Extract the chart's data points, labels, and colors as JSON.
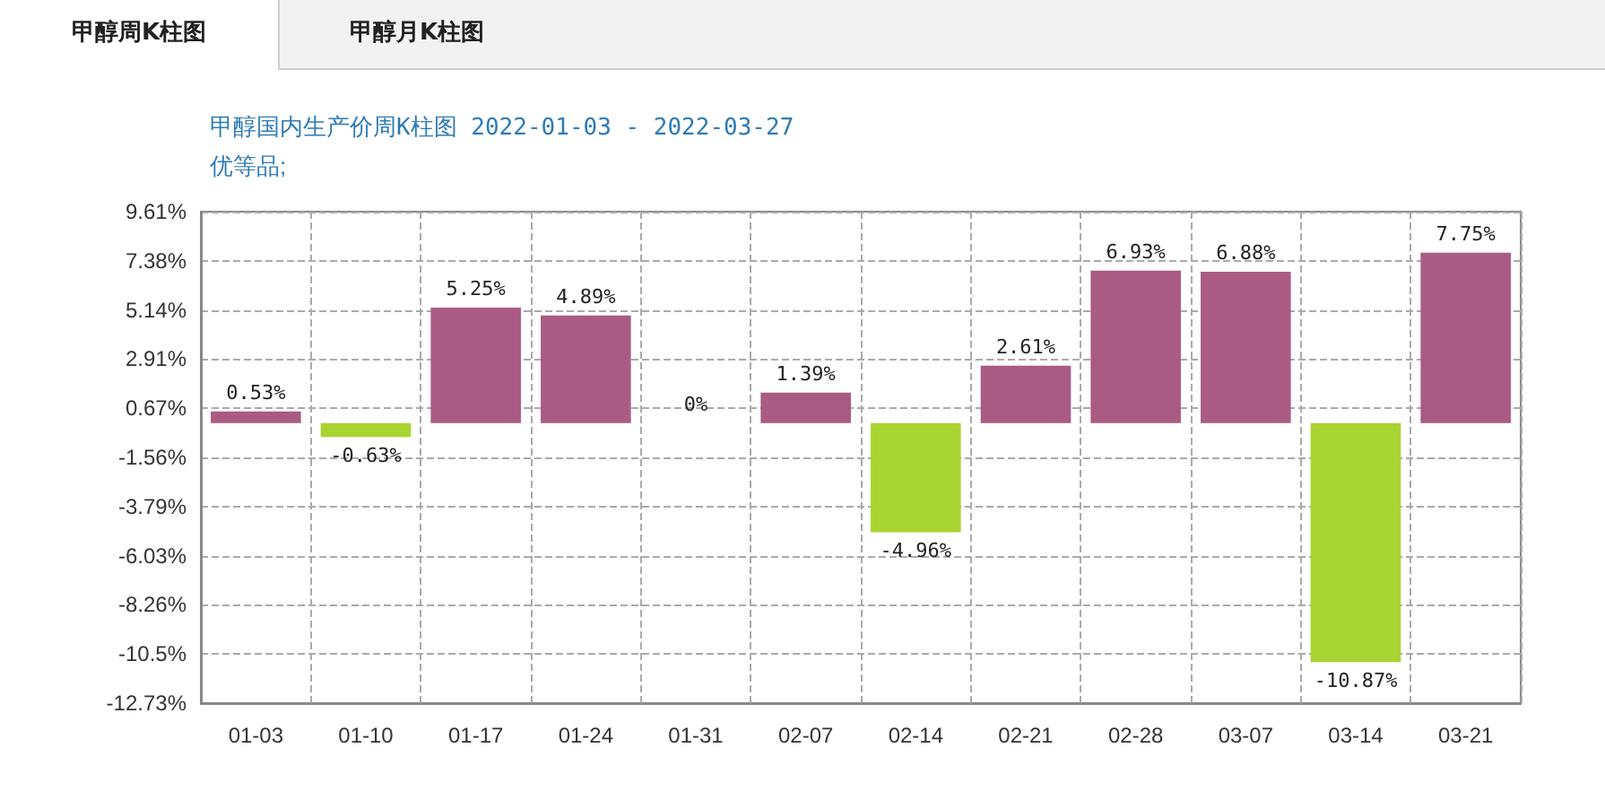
{
  "chart_data": {
    "type": "bar",
    "title": "甲醇国内生产价周K柱图 2022-01-03 - 2022-03-27",
    "subtitle": "优等品;",
    "annotations": [
      "甲醇周K柱图",
      "甲醇月K柱图"
    ],
    "categories": [
      "01-03",
      "01-10",
      "01-17",
      "01-24",
      "01-31",
      "02-07",
      "02-14",
      "02-21",
      "02-28",
      "03-07",
      "03-14",
      "03-21"
    ],
    "values": [
      0.53,
      -0.63,
      5.25,
      4.89,
      0,
      1.39,
      -4.96,
      2.61,
      6.93,
      6.88,
      -10.87,
      7.75
    ],
    "colors": [
      "#a95b84",
      "#a8d431",
      "#a95b84",
      "#a95b84",
      "#a95b84",
      "#a95b84",
      "#a8d431",
      "#a95b84",
      "#a95b84",
      "#a95b84",
      "#a8d431",
      "#a95b84"
    ],
    "value_labels": [
      "0.53%",
      "-0.63%",
      "5.25%",
      "4.89%",
      "0%",
      "1.39%",
      "-4.96%",
      "2.61%",
      "6.93%",
      "6.88%",
      "-10.87%",
      "7.75%"
    ],
    "ylim": [
      -12.73,
      9.61
    ],
    "yticks": [
      {
        "value": 9.61,
        "label": "9.61%"
      },
      {
        "value": 7.38,
        "label": "7.38%"
      },
      {
        "value": 5.14,
        "label": "5.14%"
      },
      {
        "value": 2.91,
        "label": "2.91%"
      },
      {
        "value": 0.67,
        "label": "0.67%"
      },
      {
        "value": -1.56,
        "label": "-1.56%"
      },
      {
        "value": -3.79,
        "label": "-3.79%"
      },
      {
        "value": -6.03,
        "label": "-6.03%"
      },
      {
        "value": -8.26,
        "label": "-8.26%"
      },
      {
        "value": -10.5,
        "label": "-10.5%"
      },
      {
        "value": -12.73,
        "label": "-12.73%"
      }
    ],
    "grid": true
  }
}
